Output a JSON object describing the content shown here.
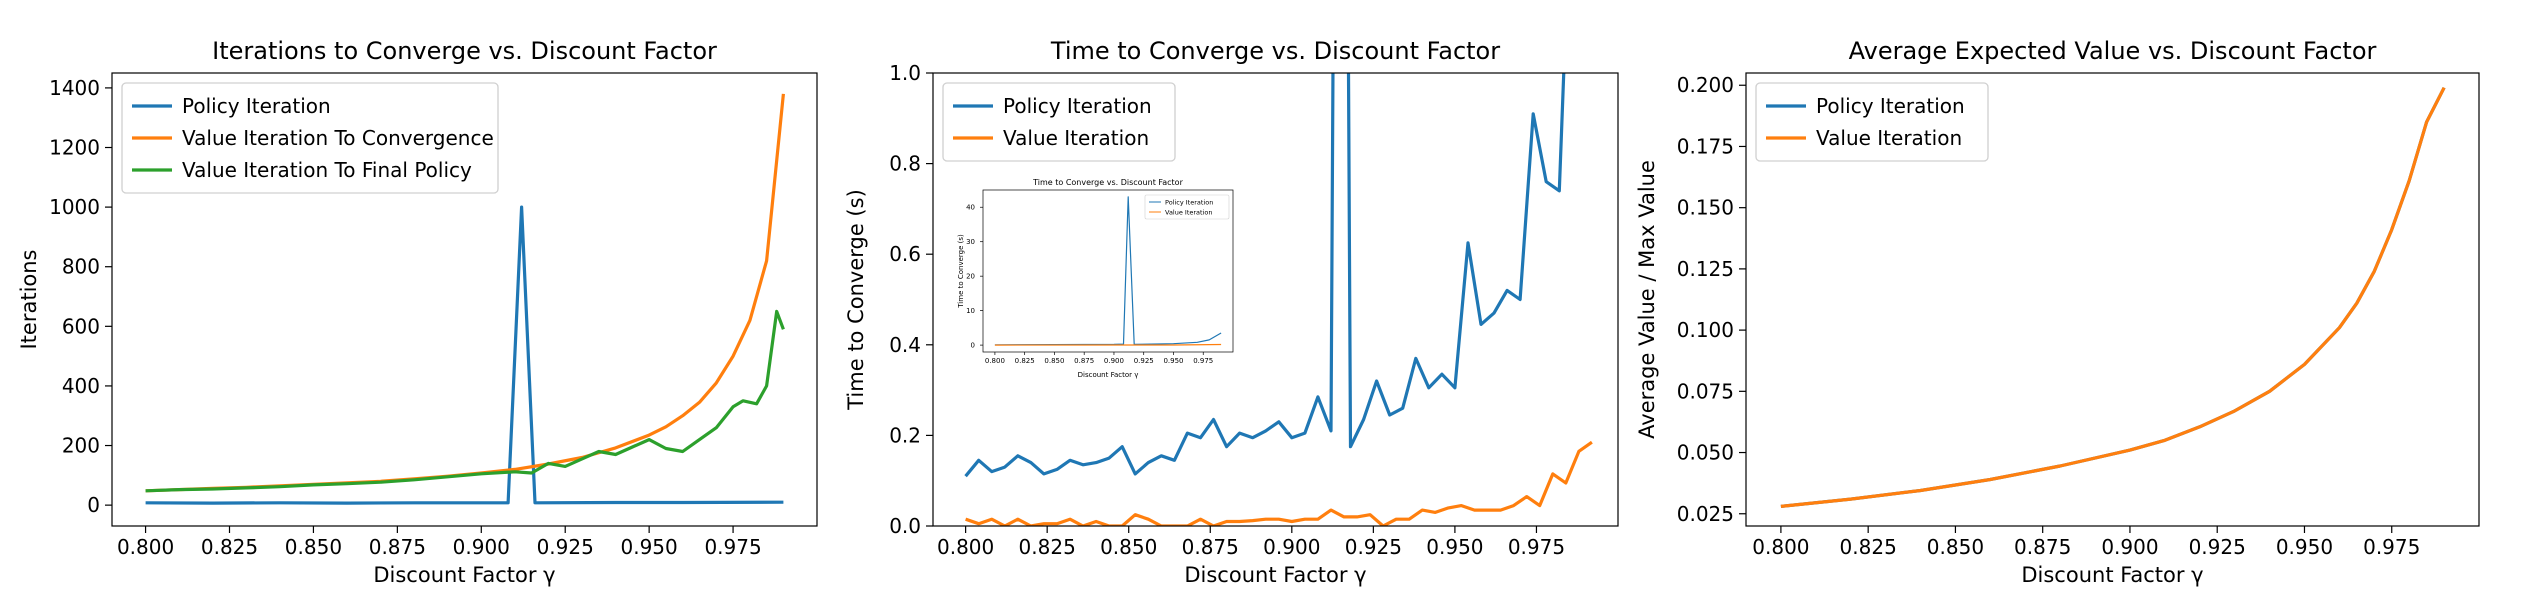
{
  "colors": {
    "policy": "#1f77b4",
    "value": "#ff7f0e",
    "final": "#2ca02c",
    "axis": "#000000"
  },
  "chart_data": [
    {
      "type": "line",
      "title": "Iterations to Converge vs. Discount Factor",
      "xlabel": "Discount Factor γ",
      "ylabel": "Iterations",
      "xlim": [
        0.79,
        1.0
      ],
      "ylim": [
        -70,
        1450
      ],
      "xticks": [
        0.8,
        0.825,
        0.85,
        0.875,
        0.9,
        0.925,
        0.95,
        0.975
      ],
      "xtick_labels": [
        "0.800",
        "0.825",
        "0.850",
        "0.875",
        "0.900",
        "0.925",
        "0.950",
        "0.975"
      ],
      "yticks": [
        0,
        200,
        400,
        600,
        800,
        1000,
        1200,
        1400
      ],
      "ytick_labels": [
        "0",
        "200",
        "400",
        "600",
        "800",
        "1000",
        "1200",
        "1400"
      ],
      "legend": "top-left",
      "grid": false,
      "series": [
        {
          "name": "Policy Iteration",
          "color": "#1f77b4",
          "points": [
            [
              0.8,
              8
            ],
            [
              0.82,
              7
            ],
            [
              0.84,
              8
            ],
            [
              0.86,
              7
            ],
            [
              0.88,
              8
            ],
            [
              0.9,
              8
            ],
            [
              0.908,
              8
            ],
            [
              0.912,
              1000
            ],
            [
              0.916,
              8
            ],
            [
              0.94,
              9
            ],
            [
              0.96,
              9
            ],
            [
              0.99,
              10
            ]
          ]
        },
        {
          "name": "Value Iteration To Convergence",
          "color": "#ff7f0e",
          "points": [
            [
              0.8,
              48
            ],
            [
              0.81,
              52
            ],
            [
              0.82,
              56
            ],
            [
              0.83,
              60
            ],
            [
              0.84,
              65
            ],
            [
              0.85,
              70
            ],
            [
              0.86,
              75
            ],
            [
              0.87,
              80
            ],
            [
              0.88,
              88
            ],
            [
              0.89,
              97
            ],
            [
              0.9,
              108
            ],
            [
              0.91,
              120
            ],
            [
              0.92,
              138
            ],
            [
              0.93,
              160
            ],
            [
              0.94,
              192
            ],
            [
              0.95,
              235
            ],
            [
              0.955,
              263
            ],
            [
              0.96,
              300
            ],
            [
              0.965,
              345
            ],
            [
              0.97,
              410
            ],
            [
              0.975,
              500
            ],
            [
              0.98,
              620
            ],
            [
              0.985,
              820
            ],
            [
              0.99,
              1380
            ]
          ]
        },
        {
          "name": "Value Iteration To Final Policy",
          "color": "#2ca02c",
          "points": [
            [
              0.8,
              48
            ],
            [
              0.81,
              52
            ],
            [
              0.82,
              54
            ],
            [
              0.83,
              58
            ],
            [
              0.84,
              62
            ],
            [
              0.85,
              68
            ],
            [
              0.86,
              72
            ],
            [
              0.87,
              77
            ],
            [
              0.88,
              85
            ],
            [
              0.89,
              95
            ],
            [
              0.9,
              105
            ],
            [
              0.91,
              112
            ],
            [
              0.915,
              108
            ],
            [
              0.92,
              140
            ],
            [
              0.925,
              130
            ],
            [
              0.93,
              155
            ],
            [
              0.935,
              180
            ],
            [
              0.94,
              170
            ],
            [
              0.945,
              195
            ],
            [
              0.95,
              220
            ],
            [
              0.955,
              190
            ],
            [
              0.96,
              180
            ],
            [
              0.965,
              220
            ],
            [
              0.97,
              260
            ],
            [
              0.975,
              330
            ],
            [
              0.978,
              350
            ],
            [
              0.982,
              340
            ],
            [
              0.985,
              400
            ],
            [
              0.988,
              650
            ],
            [
              0.99,
              590
            ]
          ]
        }
      ]
    },
    {
      "type": "line",
      "title": "Time to Converge vs. Discount Factor",
      "xlabel": "Discount Factor γ",
      "ylabel": "Time to Converge (s)",
      "xlim": [
        0.79,
        1.0
      ],
      "ylim": [
        0.0,
        1.0
      ],
      "xticks": [
        0.8,
        0.825,
        0.85,
        0.875,
        0.9,
        0.925,
        0.95,
        0.975
      ],
      "xtick_labels": [
        "0.800",
        "0.825",
        "0.850",
        "0.875",
        "0.900",
        "0.925",
        "0.950",
        "0.975"
      ],
      "yticks": [
        0.0,
        0.2,
        0.4,
        0.6,
        0.8,
        1.0
      ],
      "ytick_labels": [
        "0.0",
        "0.2",
        "0.4",
        "0.6",
        "0.8",
        "1.0"
      ],
      "legend": "top-left",
      "grid": false,
      "series": [
        {
          "name": "Policy Iteration",
          "color": "#1f77b4",
          "points": [
            [
              0.8,
              0.11
            ],
            [
              0.804,
              0.145
            ],
            [
              0.808,
              0.12
            ],
            [
              0.812,
              0.13
            ],
            [
              0.816,
              0.155
            ],
            [
              0.82,
              0.14
            ],
            [
              0.824,
              0.115
            ],
            [
              0.828,
              0.125
            ],
            [
              0.832,
              0.145
            ],
            [
              0.836,
              0.135
            ],
            [
              0.84,
              0.14
            ],
            [
              0.844,
              0.15
            ],
            [
              0.848,
              0.175
            ],
            [
              0.852,
              0.115
            ],
            [
              0.856,
              0.14
            ],
            [
              0.86,
              0.155
            ],
            [
              0.864,
              0.145
            ],
            [
              0.868,
              0.205
            ],
            [
              0.872,
              0.195
            ],
            [
              0.876,
              0.235
            ],
            [
              0.88,
              0.175
            ],
            [
              0.884,
              0.205
            ],
            [
              0.888,
              0.195
            ],
            [
              0.892,
              0.21
            ],
            [
              0.896,
              0.23
            ],
            [
              0.9,
              0.195
            ],
            [
              0.904,
              0.205
            ],
            [
              0.908,
              0.285
            ],
            [
              0.912,
              0.21
            ],
            [
              0.913,
              1.5
            ],
            [
              0.917,
              1.5
            ],
            [
              0.918,
              0.175
            ],
            [
              0.922,
              0.235
            ],
            [
              0.926,
              0.32
            ],
            [
              0.93,
              0.245
            ],
            [
              0.934,
              0.26
            ],
            [
              0.938,
              0.37
            ],
            [
              0.942,
              0.305
            ],
            [
              0.946,
              0.335
            ],
            [
              0.95,
              0.305
            ],
            [
              0.954,
              0.625
            ],
            [
              0.958,
              0.445
            ],
            [
              0.962,
              0.47
            ],
            [
              0.966,
              0.52
            ],
            [
              0.97,
              0.5
            ],
            [
              0.974,
              0.91
            ],
            [
              0.978,
              0.76
            ],
            [
              0.982,
              0.74
            ],
            [
              0.986,
              1.5
            ]
          ]
        },
        {
          "name": "Value Iteration",
          "color": "#ff7f0e",
          "points": [
            [
              0.8,
              0.015
            ],
            [
              0.804,
              0.005
            ],
            [
              0.808,
              0.015
            ],
            [
              0.812,
              0.0
            ],
            [
              0.816,
              0.015
            ],
            [
              0.82,
              0.0
            ],
            [
              0.824,
              0.005
            ],
            [
              0.828,
              0.005
            ],
            [
              0.832,
              0.015
            ],
            [
              0.836,
              0.0
            ],
            [
              0.84,
              0.01
            ],
            [
              0.844,
              0.0
            ],
            [
              0.848,
              0.0
            ],
            [
              0.852,
              0.025
            ],
            [
              0.856,
              0.015
            ],
            [
              0.86,
              0.0
            ],
            [
              0.864,
              0.0
            ],
            [
              0.868,
              0.0
            ],
            [
              0.872,
              0.015
            ],
            [
              0.876,
              0.0
            ],
            [
              0.88,
              0.01
            ],
            [
              0.884,
              0.01
            ],
            [
              0.888,
              0.012
            ],
            [
              0.892,
              0.015
            ],
            [
              0.896,
              0.015
            ],
            [
              0.9,
              0.01
            ],
            [
              0.904,
              0.015
            ],
            [
              0.908,
              0.015
            ],
            [
              0.912,
              0.035
            ],
            [
              0.916,
              0.02
            ],
            [
              0.92,
              0.02
            ],
            [
              0.924,
              0.025
            ],
            [
              0.928,
              0.0
            ],
            [
              0.932,
              0.015
            ],
            [
              0.936,
              0.015
            ],
            [
              0.94,
              0.035
            ],
            [
              0.944,
              0.03
            ],
            [
              0.948,
              0.04
            ],
            [
              0.952,
              0.045
            ],
            [
              0.956,
              0.035
            ],
            [
              0.96,
              0.035
            ],
            [
              0.964,
              0.035
            ],
            [
              0.968,
              0.045
            ],
            [
              0.972,
              0.065
            ],
            [
              0.976,
              0.045
            ],
            [
              0.98,
              0.115
            ],
            [
              0.984,
              0.095
            ],
            [
              0.988,
              0.165
            ],
            [
              0.992,
              0.185
            ]
          ]
        }
      ],
      "inset": {
        "title": "Time to Converge vs. Discount Factor",
        "xlabel": "Discount Factor γ",
        "ylabel": "Time to Converge (s)",
        "xlim": [
          0.79,
          1.0
        ],
        "ylim": [
          -2,
          45
        ],
        "xticks": [
          0.8,
          0.825,
          0.85,
          0.875,
          0.9,
          0.925,
          0.95,
          0.975
        ],
        "xtick_labels": [
          "0.800",
          "0.825",
          "0.850",
          "0.875",
          "0.900",
          "0.925",
          "0.950",
          "0.975"
        ],
        "yticks": [
          0,
          10,
          20,
          30,
          40
        ],
        "ytick_labels": [
          "0",
          "10",
          "20",
          "30",
          "40"
        ],
        "legend": "top-right",
        "series": [
          {
            "name": "Policy Iteration",
            "color": "#1f77b4",
            "points": [
              [
                0.8,
                0.1
              ],
              [
                0.85,
                0.15
              ],
              [
                0.9,
                0.2
              ],
              [
                0.908,
                0.3
              ],
              [
                0.912,
                43
              ],
              [
                0.917,
                0.2
              ],
              [
                0.95,
                0.4
              ],
              [
                0.97,
                0.8
              ],
              [
                0.98,
                1.5
              ],
              [
                0.99,
                3.5
              ]
            ]
          },
          {
            "name": "Value Iteration",
            "color": "#ff7f0e",
            "points": [
              [
                0.8,
                0.01
              ],
              [
                0.9,
                0.02
              ],
              [
                0.95,
                0.04
              ],
              [
                0.99,
                0.19
              ]
            ]
          }
        ]
      }
    },
    {
      "type": "line",
      "title": "Average Expected Value vs. Discount Factor",
      "xlabel": "Discount Factor γ",
      "ylabel": "Average Value / Max Value",
      "xlim": [
        0.79,
        1.0
      ],
      "ylim": [
        0.02,
        0.205
      ],
      "xticks": [
        0.8,
        0.825,
        0.85,
        0.875,
        0.9,
        0.925,
        0.95,
        0.975
      ],
      "xtick_labels": [
        "0.800",
        "0.825",
        "0.850",
        "0.875",
        "0.900",
        "0.925",
        "0.950",
        "0.975"
      ],
      "yticks": [
        0.025,
        0.05,
        0.075,
        0.1,
        0.125,
        0.15,
        0.175,
        0.2
      ],
      "ytick_labels": [
        "0.025",
        "0.050",
        "0.075",
        "0.100",
        "0.125",
        "0.150",
        "0.175",
        "0.200"
      ],
      "legend": "top-left",
      "grid": false,
      "series": [
        {
          "name": "Policy Iteration",
          "color": "#1f77b4",
          "points": [
            [
              0.8,
              0.028
            ],
            [
              0.82,
              0.031
            ],
            [
              0.84,
              0.0345
            ],
            [
              0.86,
              0.039
            ],
            [
              0.88,
              0.0445
            ],
            [
              0.9,
              0.051
            ],
            [
              0.91,
              0.055
            ],
            [
              0.92,
              0.0605
            ],
            [
              0.93,
              0.067
            ],
            [
              0.94,
              0.075
            ],
            [
              0.95,
              0.086
            ],
            [
              0.96,
              0.101
            ],
            [
              0.965,
              0.111
            ],
            [
              0.97,
              0.124
            ],
            [
              0.975,
              0.141
            ],
            [
              0.98,
              0.161
            ],
            [
              0.985,
              0.185
            ],
            [
              0.99,
              0.199
            ]
          ]
        },
        {
          "name": "Value Iteration",
          "color": "#ff7f0e",
          "points": [
            [
              0.8,
              0.028
            ],
            [
              0.82,
              0.031
            ],
            [
              0.84,
              0.0345
            ],
            [
              0.86,
              0.039
            ],
            [
              0.88,
              0.0445
            ],
            [
              0.9,
              0.051
            ],
            [
              0.91,
              0.055
            ],
            [
              0.92,
              0.0605
            ],
            [
              0.93,
              0.067
            ],
            [
              0.94,
              0.075
            ],
            [
              0.95,
              0.086
            ],
            [
              0.96,
              0.101
            ],
            [
              0.965,
              0.111
            ],
            [
              0.97,
              0.124
            ],
            [
              0.975,
              0.141
            ],
            [
              0.98,
              0.161
            ],
            [
              0.985,
              0.185
            ],
            [
              0.99,
              0.199
            ]
          ]
        }
      ]
    }
  ]
}
